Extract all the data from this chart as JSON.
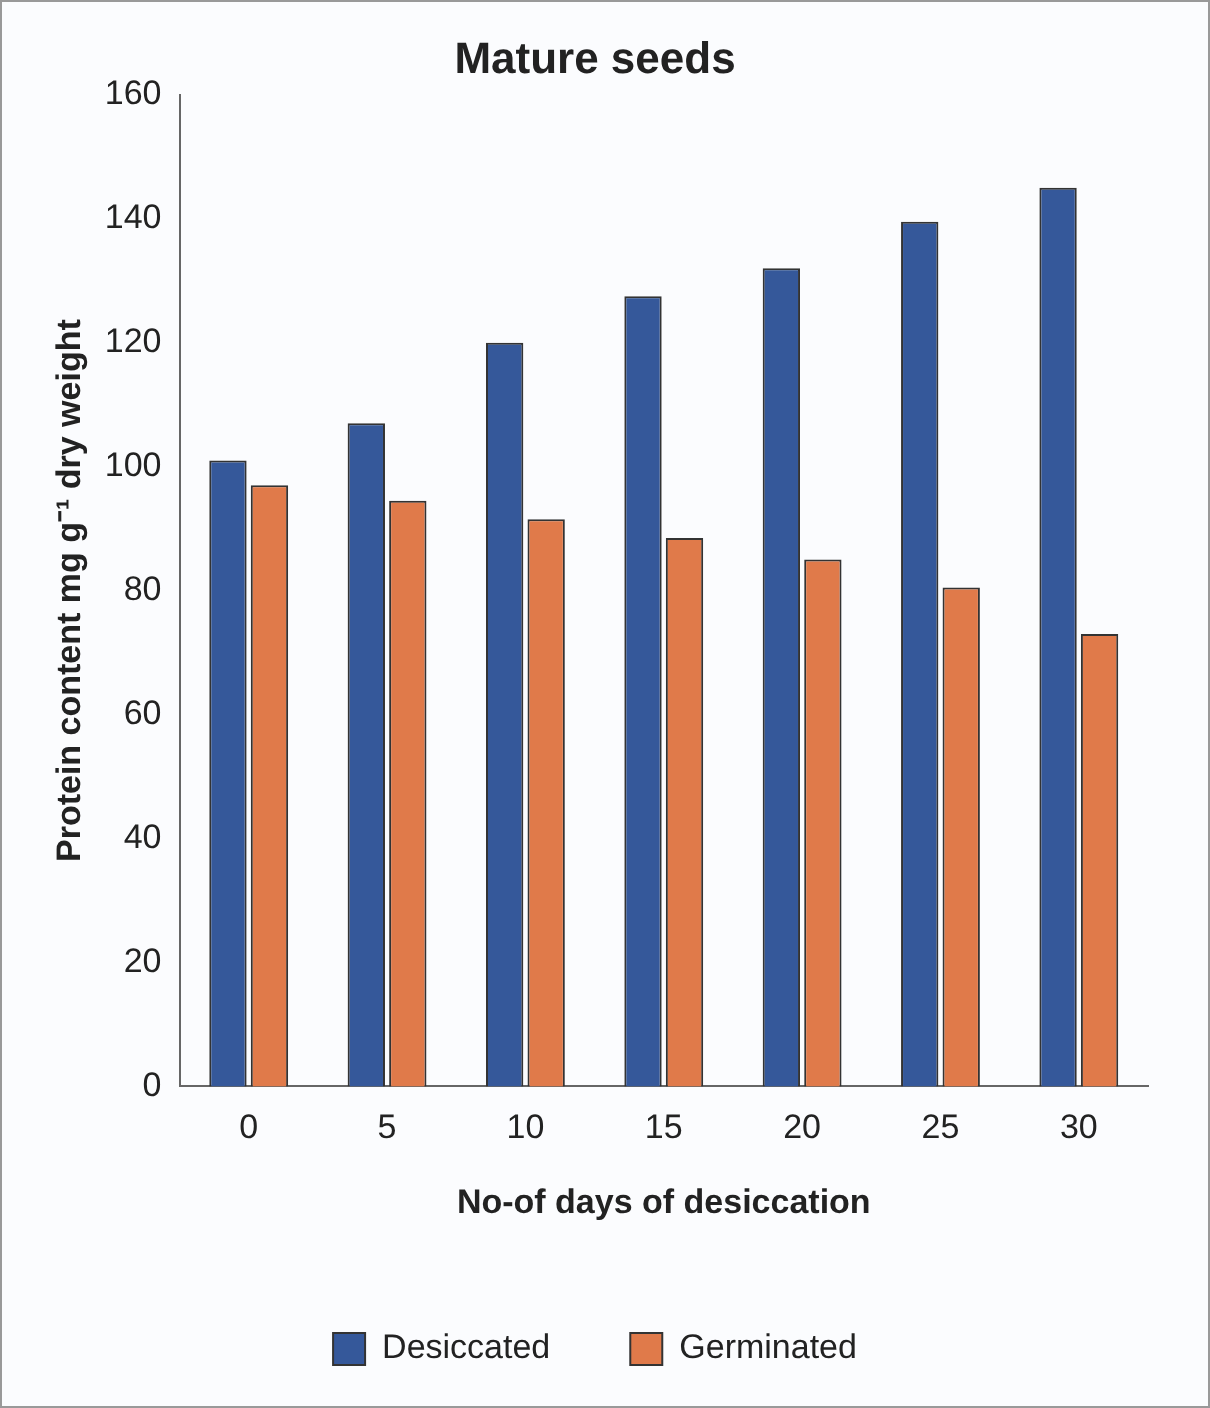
{
  "chart_data": {
    "type": "bar",
    "title": "Mature seeds",
    "xlabel": "No-of days of desiccation",
    "ylabel": "Protein content mg g⁻¹ dry weight",
    "categories": [
      "0",
      "5",
      "10",
      "15",
      "20",
      "25",
      "30"
    ],
    "series": [
      {
        "name": "Desiccated",
        "color": "#35589a",
        "values": [
          101,
          107,
          120,
          127.5,
          132,
          139.5,
          145
        ]
      },
      {
        "name": "Germinated",
        "color": "#e07a4a",
        "values": [
          97,
          94.5,
          91.5,
          88.5,
          85,
          80.5,
          73
        ]
      }
    ],
    "ylim": [
      0,
      160
    ],
    "yticks": [
      0,
      20,
      40,
      60,
      80,
      100,
      120,
      140,
      160
    ],
    "grid": false,
    "legend": "bottom"
  }
}
